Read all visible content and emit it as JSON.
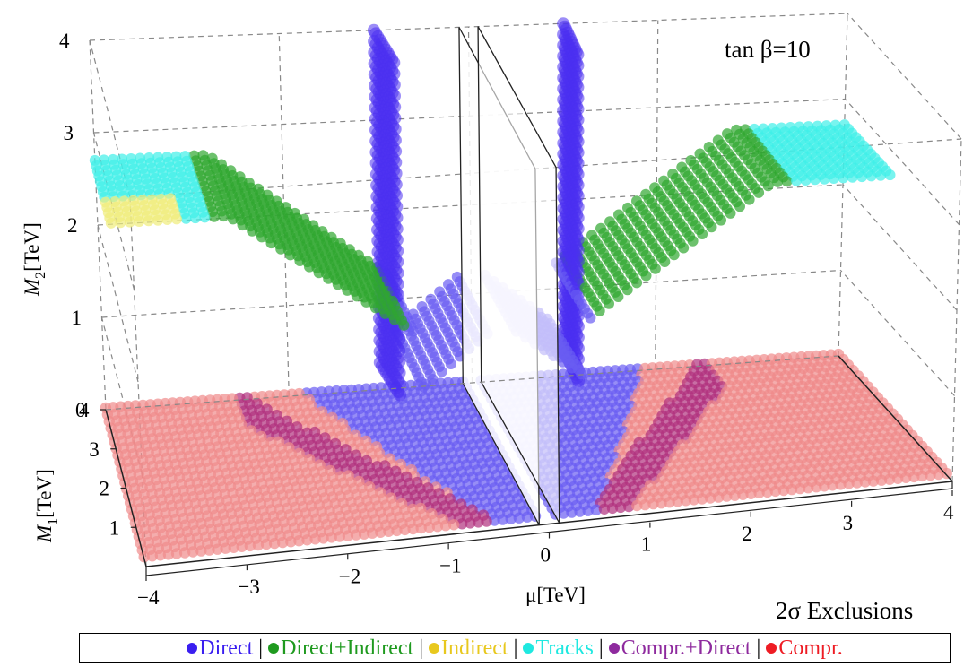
{
  "chart_data": {
    "type": "scatter3d",
    "annotation": "tan β=10",
    "footnote": "2σ Exclusions",
    "x_axis": {
      "label": "μ[TeV]",
      "ticks": [
        "−4",
        "−3",
        "−2",
        "−1",
        "0",
        "1",
        "2",
        "3",
        "4"
      ],
      "range": [
        -4,
        4
      ]
    },
    "y_axis": {
      "label": "M1[TeV]",
      "label_main": "M",
      "label_sub": "1",
      "label_unit": "[TeV]",
      "ticks": [
        "1",
        "2",
        "3",
        "4"
      ],
      "range": [
        0,
        4
      ]
    },
    "z_axis": {
      "label": "M2[TeV]",
      "label_main": "M",
      "label_sub": "2",
      "label_unit": "[TeV]",
      "ticks": [
        "0",
        "1",
        "2",
        "3",
        "4"
      ],
      "range": [
        0,
        4
      ]
    },
    "legend": [
      {
        "name": "Direct",
        "color": "#3a1ef0"
      },
      {
        "name": "Direct+Indirect",
        "color": "#1f9a1f"
      },
      {
        "name": "Indirect",
        "color": "#e8c81e"
      },
      {
        "name": "Tracks",
        "color": "#1ee8e0"
      },
      {
        "name": "Compr.+Direct",
        "color": "#8e2a9e"
      },
      {
        "name": "Compr.",
        "color": "#ee1c24"
      }
    ],
    "series_colors": {
      "direct": "#6a5cf2",
      "direct_strong": "#4a2ff0",
      "direct_indirect": "#2fa62f",
      "direct_indirect_light": "#7fcf7f",
      "indirect": "#f0ec7a",
      "tracks": "#3ef0e8",
      "tracks_light": "#7ff0d8",
      "compr_direct": "#b0307e",
      "compr": "#f08a8a"
    }
  }
}
